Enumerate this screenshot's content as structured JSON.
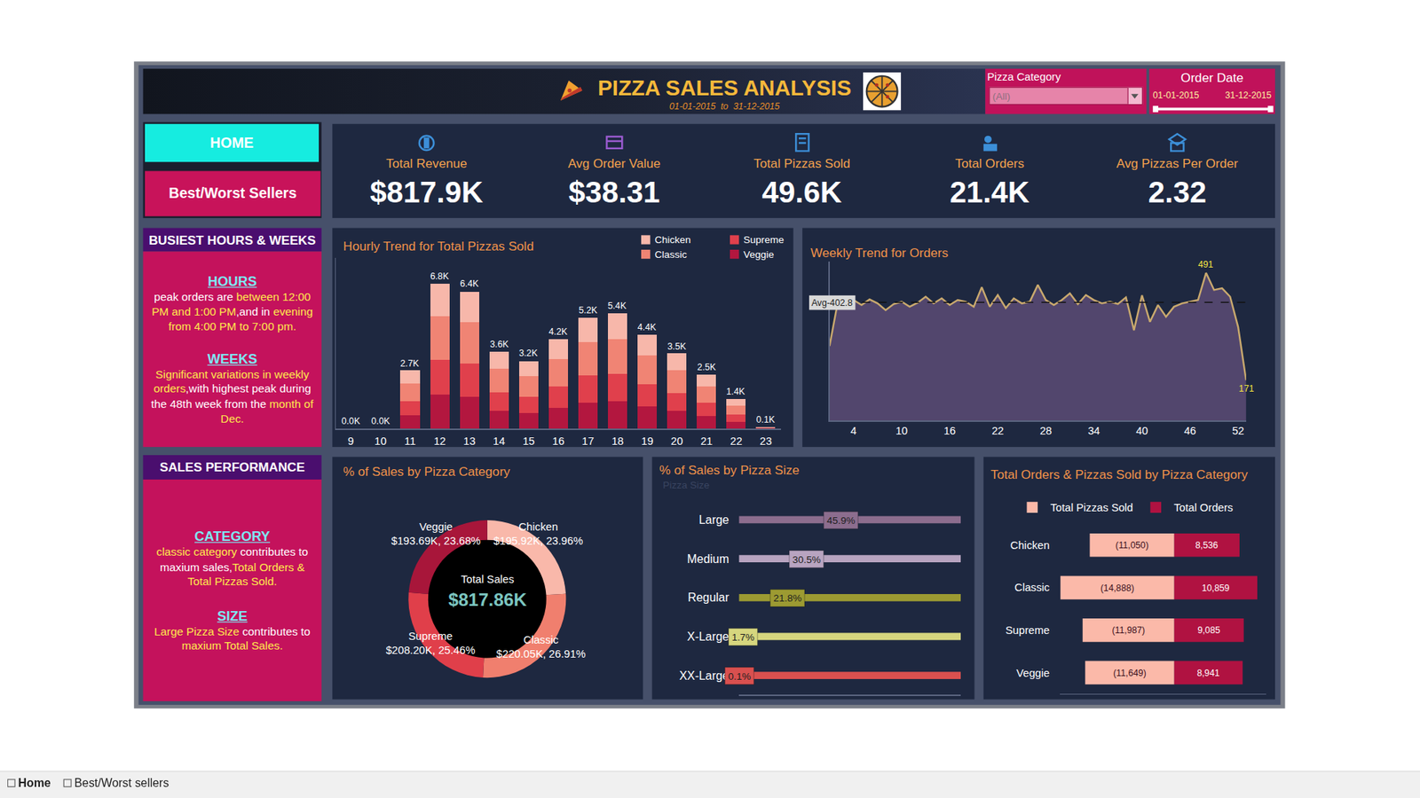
{
  "header": {
    "title": "PIZZA SALES ANALYSIS",
    "subtitle": "01-01-2015  to  31-12-2015"
  },
  "filters": {
    "pizza_category": {
      "label": "Pizza Category",
      "value": "(All)"
    },
    "order_date": {
      "label": "Order Date",
      "from": "01-01-2015",
      "to": "31-12-2015"
    }
  },
  "nav": [
    "HOME",
    "Best/Worst Sellers"
  ],
  "kpis": [
    {
      "label": "Total Revenue",
      "value": "$817.9K"
    },
    {
      "label": "Avg Order Value",
      "value": "$38.31"
    },
    {
      "label": "Total Pizzas Sold",
      "value": "49.6K"
    },
    {
      "label": "Total Orders",
      "value": "21.4K"
    },
    {
      "label": "Avg Pizzas Per Order",
      "value": "2.32"
    }
  ],
  "notes": [
    {
      "title": "BUSIEST HOURS & WEEKS",
      "sections": [
        {
          "heading": "HOURS",
          "runs": [
            {
              "text": "peak orders are ",
              "color": "#ffffff"
            },
            {
              "text": "between 12:00 PM and 1:00 PM",
              "color": "#ffe94d"
            },
            {
              "text": ",and in ",
              "color": "#ffffff"
            },
            {
              "text": "evening from 4:00 PM to 7:00 pm.",
              "color": "#ffe94d"
            }
          ]
        },
        {
          "heading": "WEEKS",
          "runs": [
            {
              "text": "Significant variations in weekly orders",
              "color": "#ffe94d"
            },
            {
              "text": ",with highest peak during the 48th week from the ",
              "color": "#ffffff"
            },
            {
              "text": "month of Dec.",
              "color": "#ffe94d"
            }
          ]
        }
      ]
    },
    {
      "title": "SALES PERFORMANCE",
      "sections": [
        {
          "heading": "CATEGORY",
          "runs": [
            {
              "text": "classic category",
              "color": "#ffe94d"
            },
            {
              "text": " contributes to maxium sales,",
              "color": "#ffffff"
            },
            {
              "text": "Total Orders & Total Pizzas Sold.",
              "color": "#ffe94d"
            }
          ]
        },
        {
          "heading": "SIZE",
          "runs": [
            {
              "text": "Large Pizza Size",
              "color": "#ffe94d"
            },
            {
              "text": " contributes to ",
              "color": "#ffffff"
            },
            {
              "text": "maxium Total Sales.",
              "color": "#ffe94d"
            }
          ]
        }
      ]
    }
  ],
  "tabs": [
    "Home",
    "Best/Worst sellers"
  ],
  "chart_data": [
    {
      "type": "bar",
      "title": "Hourly Trend for Total Pizzas Sold",
      "stacked": true,
      "categories": [
        9,
        10,
        11,
        12,
        13,
        14,
        15,
        16,
        17,
        18,
        19,
        20,
        21,
        22,
        23
      ],
      "series": [
        {
          "name": "Chicken",
          "color": "#f7b7aa",
          "values": [
            1,
            4,
            608,
            1511,
            1430,
            806,
            707,
            933,
            1162,
            1208,
            983,
            788,
            568,
            309,
            15
          ]
        },
        {
          "name": "Classic",
          "color": "#f08474",
          "values": [
            1,
            6,
            818,
            2033,
            1924,
            1084,
            951,
            1256,
            1563,
            1625,
            1322,
            1060,
            764,
            416,
            20
          ]
        },
        {
          "name": "Supreme",
          "color": "#e0404c",
          "values": [
            1,
            4,
            657,
            1633,
            1546,
            871,
            764,
            1009,
            1256,
            1306,
            1062,
            852,
            613,
            334,
            17
          ]
        },
        {
          "name": "Veggie",
          "color": "#b3173f",
          "values": [
            1,
            4,
            645,
            1599,
            1513,
            852,
            748,
            987,
            1230,
            1278,
            1039,
            834,
            600,
            327,
            16
          ]
        }
      ],
      "total_labels": [
        "0.0K",
        "0.0K",
        "2.7K",
        "6.8K",
        "6.4K",
        "3.6K",
        "3.2K",
        "4.2K",
        "5.2K",
        "5.4K",
        "4.4K",
        "3.5K",
        "2.5K",
        "1.4K",
        "0.1K"
      ],
      "ylim": [
        0,
        8000
      ],
      "yticks": [],
      "tick_labels": "x",
      "grid": false,
      "legend": "top right"
    },
    {
      "type": "area",
      "title": "Weekly Trend for Orders",
      "x": [
        1,
        2,
        3,
        4,
        5,
        6,
        7,
        8,
        9,
        10,
        11,
        12,
        13,
        14,
        15,
        16,
        17,
        18,
        19,
        20,
        21,
        22,
        23,
        24,
        25,
        26,
        27,
        28,
        29,
        30,
        31,
        32,
        33,
        34,
        35,
        36,
        37,
        38,
        39,
        40,
        41,
        42,
        43,
        44,
        45,
        46,
        47,
        48,
        49,
        50,
        51,
        52,
        53
      ],
      "values": [
        273,
        400,
        418,
        410,
        395,
        412,
        400,
        380,
        398,
        405,
        390,
        402,
        420,
        400,
        415,
        395,
        410,
        405,
        390,
        448,
        390,
        425,
        386,
        415,
        400,
        405,
        455,
        410,
        395,
        410,
        430,
        398,
        425,
        410,
        400,
        405,
        398,
        418,
        320,
        424,
        345,
        395,
        360,
        390,
        400,
        405,
        410,
        491,
        440,
        445,
        420,
        330,
        171
      ],
      "color": "#c9a96e",
      "xlim": [
        1,
        53
      ],
      "xticks": [
        4,
        10,
        16,
        22,
        28,
        34,
        40,
        46,
        52
      ],
      "ylim": [
        50,
        525
      ],
      "yticks": [],
      "tick_labels": "x",
      "grid": false,
      "reference_line": {
        "value": 402.8,
        "label": "Avg-402.8"
      },
      "labeled_points": [
        48,
        53
      ]
    },
    {
      "type": "pie",
      "title": "% of Sales by Pizza Category",
      "categories": [
        "Chicken",
        "Classic",
        "Supreme",
        "Veggie"
      ],
      "values": [
        195920,
        220050,
        208200,
        193690
      ],
      "value_labels": [
        "$195.92K, 23.96%",
        "$220.05K, 26.91%",
        "$208.20K, 25.46%",
        "$193.69K, 23.68%"
      ],
      "colors": [
        "#f9b8aa",
        "#f07f6e",
        "#e03f4a",
        "#a8163a"
      ],
      "center_text": [
        "Total Sales",
        "$817.86K"
      ]
    },
    {
      "type": "dot",
      "title": "% of Sales by Pizza Size",
      "y_label": "Pizza Size",
      "orientation": "horizontal",
      "categories": [
        "Large",
        "Medium",
        "Regular",
        "X-Large",
        "XX-Large"
      ],
      "values": [
        45.9,
        30.5,
        21.8,
        1.7,
        0.1
      ],
      "value_labels": [
        "45.9%",
        "30.5%",
        "21.8%",
        "1.7%",
        "0.1%"
      ],
      "colors": [
        "#8c6d8e",
        "#b8a4c0",
        "#9c9a32",
        "#d6d67e",
        "#d9504f"
      ],
      "xlim": [
        0,
        100
      ],
      "xticks": [],
      "tick_labels": "y",
      "grid": false,
      "data_labels": true
    },
    {
      "type": "bar",
      "title": "Total Orders & Pizzas Sold by Pizza Category",
      "orientation": "horizontal",
      "stacked": true,
      "categories": [
        "Chicken",
        "Classic",
        "Supreme",
        "Veggie"
      ],
      "series": [
        {
          "name": "Total Pizzas Sold",
          "color": "#fbb9a9",
          "values": [
            -11050,
            -14888,
            -11987,
            -11649
          ],
          "value_labels": [
            "(11,050)",
            "(14,888)",
            "(11,987)",
            "(11,649)"
          ]
        },
        {
          "name": "Total Orders",
          "color": "#b01241",
          "values": [
            8536,
            10859,
            9085,
            8941
          ],
          "value_labels": [
            "8,536",
            "10,859",
            "9,085",
            "8,941"
          ]
        }
      ],
      "xlim": [
        -15000,
        12000
      ],
      "xticks": [],
      "tick_labels": "y",
      "grid": false,
      "data_labels": true,
      "legend": "top left"
    }
  ]
}
